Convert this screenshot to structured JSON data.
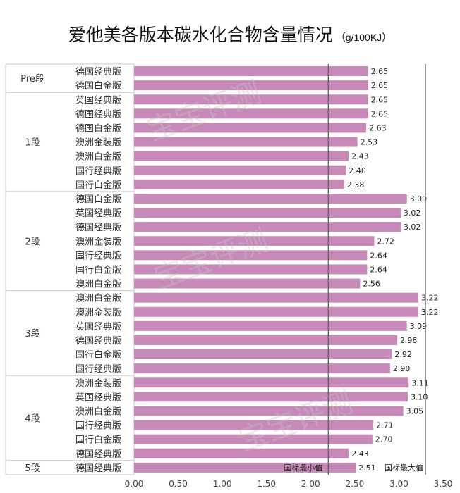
{
  "chart_data": {
    "type": "bar",
    "orientation": "horizontal",
    "title": "爱他美各版本碳水化合物含量情况",
    "unit": "（g/100KJ）",
    "bar_color": "#c689b8",
    "xlim": [
      0,
      3.5
    ],
    "xticks": [
      "0.00",
      "0.50",
      "1.00",
      "1.50",
      "2.00",
      "2.50",
      "3.00",
      "3.50"
    ],
    "reference_lines": [
      {
        "label": "国标最小值",
        "value": 2.2
      },
      {
        "label": "国标最大值",
        "value": 3.3
      }
    ],
    "groups": [
      {
        "label": "Pre段",
        "items": [
          {
            "name": "德国经典版",
            "value": 2.65,
            "label": "2.65"
          },
          {
            "name": "德国白金版",
            "value": 2.65,
            "label": "2.65"
          }
        ]
      },
      {
        "label": "1段",
        "items": [
          {
            "name": "英国经典版",
            "value": 2.65,
            "label": "2.65"
          },
          {
            "name": "德国经典版",
            "value": 2.65,
            "label": "2.65"
          },
          {
            "name": "德国白金版",
            "value": 2.63,
            "label": "2.63"
          },
          {
            "name": "澳洲金装版",
            "value": 2.53,
            "label": "2.53"
          },
          {
            "name": "澳洲白金版",
            "value": 2.43,
            "label": "2.43"
          },
          {
            "name": "国行经典版",
            "value": 2.4,
            "label": "2.40"
          },
          {
            "name": "国行白金版",
            "value": 2.38,
            "label": "2.38"
          }
        ]
      },
      {
        "label": "2段",
        "items": [
          {
            "name": "德国白金版",
            "value": 3.09,
            "label": "3.09"
          },
          {
            "name": "英国经典版",
            "value": 3.02,
            "label": "3.02"
          },
          {
            "name": "德国经典版",
            "value": 3.02,
            "label": "3.02"
          },
          {
            "name": "澳洲金装版",
            "value": 2.72,
            "label": "2.72"
          },
          {
            "name": "国行经典版",
            "value": 2.64,
            "label": "2.64"
          },
          {
            "name": "国行白金版",
            "value": 2.64,
            "label": "2.64"
          },
          {
            "name": "澳洲白金版",
            "value": 2.56,
            "label": "2.56"
          }
        ]
      },
      {
        "label": "3段",
        "items": [
          {
            "name": "澳洲白金版",
            "value": 3.22,
            "label": "3.22"
          },
          {
            "name": "澳洲金装版",
            "value": 3.22,
            "label": "3.22"
          },
          {
            "name": "英国经典版",
            "value": 3.09,
            "label": "3.09"
          },
          {
            "name": "德国经典版",
            "value": 2.98,
            "label": "2.98"
          },
          {
            "name": "国行白金版",
            "value": 2.92,
            "label": "2.92"
          },
          {
            "name": "国行经典版",
            "value": 2.9,
            "label": "2.90"
          }
        ]
      },
      {
        "label": "4段",
        "items": [
          {
            "name": "澳洲金装版",
            "value": 3.11,
            "label": "3.11"
          },
          {
            "name": "英国经典版",
            "value": 3.1,
            "label": "3.10"
          },
          {
            "name": "澳洲白金版",
            "value": 3.05,
            "label": "3.05"
          },
          {
            "name": "国行经典版",
            "value": 2.71,
            "label": "2.71"
          },
          {
            "name": "国行白金版",
            "value": 2.7,
            "label": "2.70"
          },
          {
            "name": "德国经典版",
            "value": 2.43,
            "label": "2.43"
          }
        ]
      },
      {
        "label": "5段",
        "items": [
          {
            "name": "德国经典版",
            "value": 2.51,
            "label": "2.51"
          }
        ]
      }
    ]
  },
  "watermarks": [
    "宝宝评测",
    "宝宝评测",
    "宝宝评测"
  ]
}
